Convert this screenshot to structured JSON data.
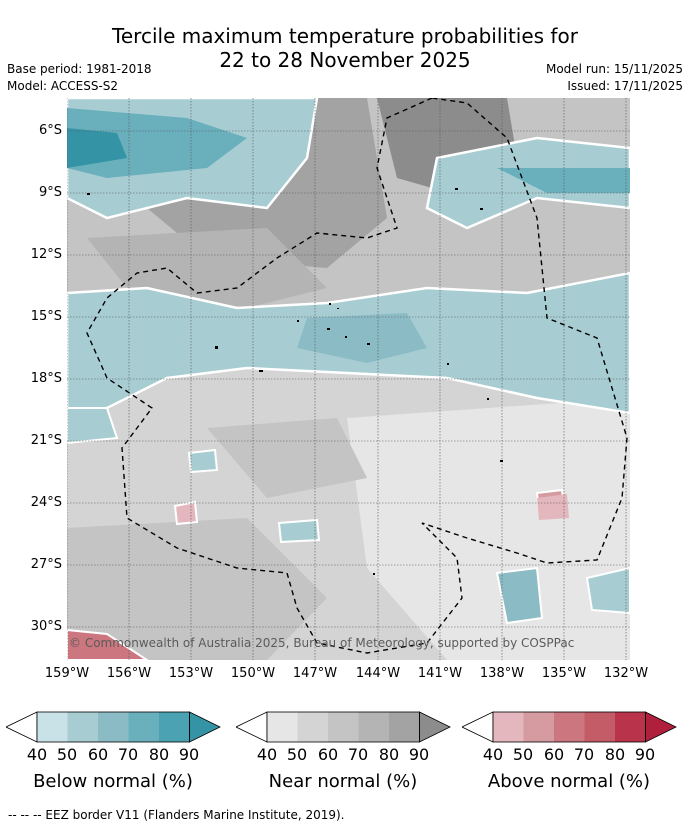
{
  "title_line1": "Tercile maximum temperature probabilities for",
  "title_line2": "22 to 28 November 2025",
  "base_period": "Base period: 1981-2018",
  "model": "Model: ACCESS-S2",
  "model_run": "Model run: 15/11/2025",
  "issued": "Issued: 17/11/2025",
  "lat_labels": [
    "6°S",
    "9°S",
    "12°S",
    "15°S",
    "18°S",
    "21°S",
    "24°S",
    "27°S",
    "30°S"
  ],
  "lon_labels": [
    "159°W",
    "156°W",
    "153°W",
    "150°W",
    "147°W",
    "144°W",
    "141°W",
    "138°W",
    "135°W",
    "132°W"
  ],
  "copyright": "© Commonwealth of Australia 2025, Bureau of Meteorology, supported by COSPPac",
  "colorbars": [
    {
      "label": "Below normal (%)",
      "ticks": [
        "40",
        "50",
        "60",
        "70",
        "80",
        "90"
      ],
      "colors": [
        "#c9e2e7",
        "#a7cdd3",
        "#8bbcc6",
        "#6aafbc",
        "#4aa2b2",
        "#3494a6"
      ]
    },
    {
      "label": "Near normal (%)",
      "ticks": [
        "40",
        "50",
        "60",
        "70",
        "80",
        "90"
      ],
      "colors": [
        "#e6e6e6",
        "#d4d4d4",
        "#c4c4c4",
        "#b4b4b4",
        "#a3a3a3",
        "#8c8c8c"
      ]
    },
    {
      "label": "Above normal (%)",
      "ticks": [
        "40",
        "50",
        "60",
        "70",
        "80",
        "90"
      ],
      "colors": [
        "#e3b7bd",
        "#d59ba1",
        "#cc767f",
        "#c45c68",
        "#b9344a",
        "#b0203c"
      ]
    }
  ],
  "footnote": "--  --  -- EEZ border V11 (Flanders Marine Institute, 2019).",
  "colors": {
    "below_normal": "#6aafbc",
    "near_normal": "#b4b4b4",
    "above_normal": "#cc767f",
    "eez_border": "#000000"
  }
}
